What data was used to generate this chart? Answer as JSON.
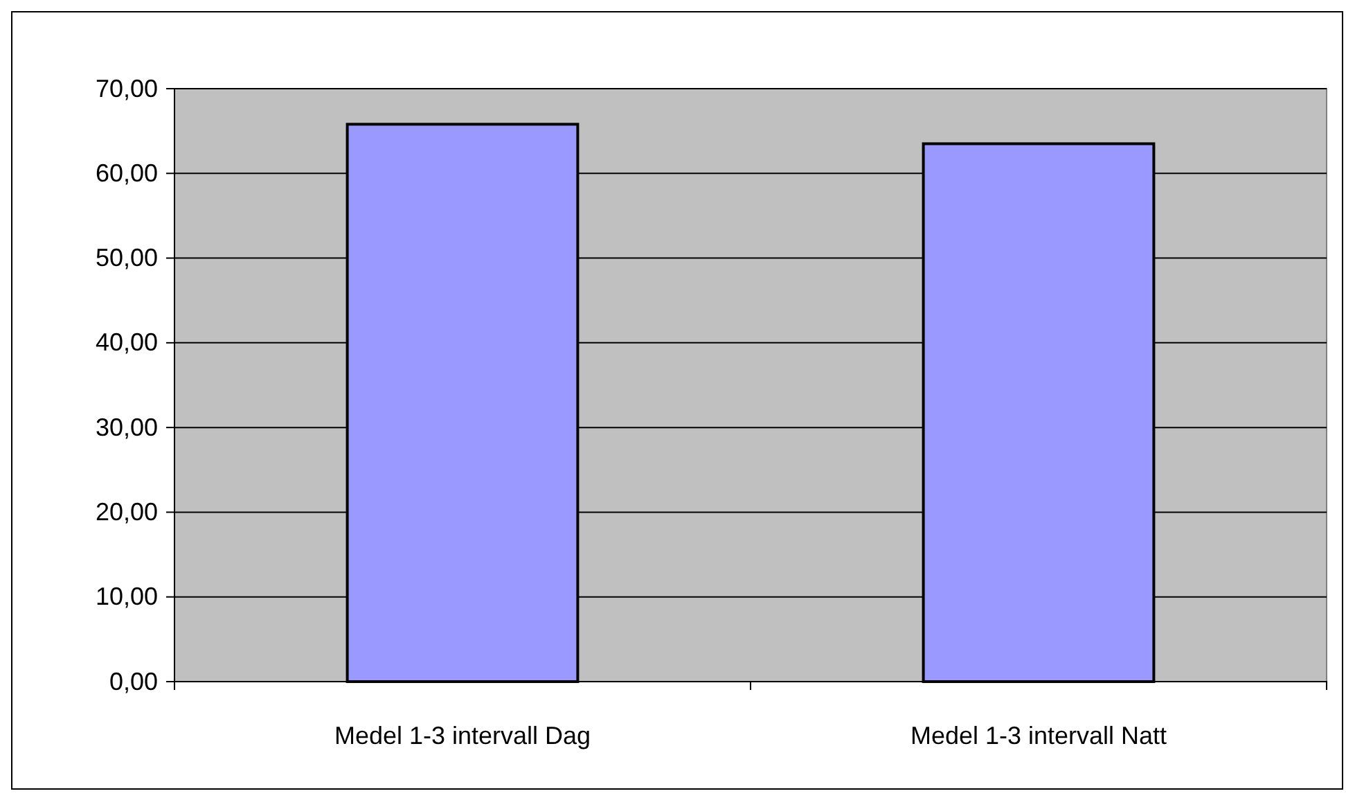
{
  "chart_data": {
    "type": "bar",
    "categories": [
      "Medel 1-3 intervall Dag",
      "Medel 1-3 intervall Natt"
    ],
    "values": [
      65.8,
      63.5
    ],
    "color": "#9999ff",
    "ylim": [
      0,
      70
    ],
    "yticks": [
      {
        "value": 0,
        "label": "0,00"
      },
      {
        "value": 10,
        "label": "10,00"
      },
      {
        "value": 20,
        "label": "20,00"
      },
      {
        "value": 30,
        "label": "30,00"
      },
      {
        "value": 40,
        "label": "40,00"
      },
      {
        "value": 50,
        "label": "50,00"
      },
      {
        "value": 60,
        "label": "60,00"
      },
      {
        "value": 70,
        "label": "70,00"
      }
    ],
    "grid": "y"
  }
}
